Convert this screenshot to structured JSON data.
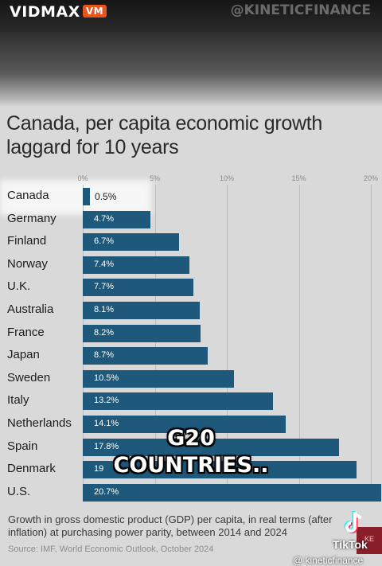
{
  "header": {
    "brand": "VIDMAX",
    "brand_badge": "VM",
    "watermark": "@KINETICFINANCE"
  },
  "chart_data": {
    "type": "bar",
    "orientation": "horizontal",
    "title": "Canada, per capita economic growth laggard for 10 years",
    "categories": [
      "Canada",
      "Germany",
      "Finland",
      "Norway",
      "U.K.",
      "Australia",
      "France",
      "Japan",
      "Sweden",
      "Italy",
      "Netherlands",
      "Spain",
      "Denmark",
      "U.S."
    ],
    "values": [
      0.5,
      4.7,
      6.7,
      7.4,
      7.7,
      8.1,
      8.2,
      8.7,
      10.5,
      13.2,
      14.1,
      17.8,
      19.0,
      20.7
    ],
    "value_labels": [
      "0.5%",
      "4.7%",
      "6.7%",
      "7.4%",
      "7.7%",
      "8.1%",
      "8.2%",
      "8.7%",
      "10.5%",
      "13.2%",
      "14.1%",
      "17.8%",
      "19",
      "20.7%"
    ],
    "x_ticks": [
      "0%",
      "5%",
      "10%",
      "15%",
      "20%"
    ],
    "xlim": [
      0,
      20
    ],
    "bar_color": "#1e587a",
    "highlighted_category": "Canada",
    "footnote": "Growth in gross domestic product (GDP) per capita, in real terms (after inflation) at purchasing power parity, between 2014 and 2024",
    "source": "Source: IMF, World Economic Outlook, October 2024"
  },
  "overlay": {
    "caption_line1": "G20",
    "caption_line2": "COUNTRIES.."
  },
  "tiktok": {
    "label": "TikTok",
    "handle": "@ kineticfinance",
    "corner_text": "KE"
  }
}
